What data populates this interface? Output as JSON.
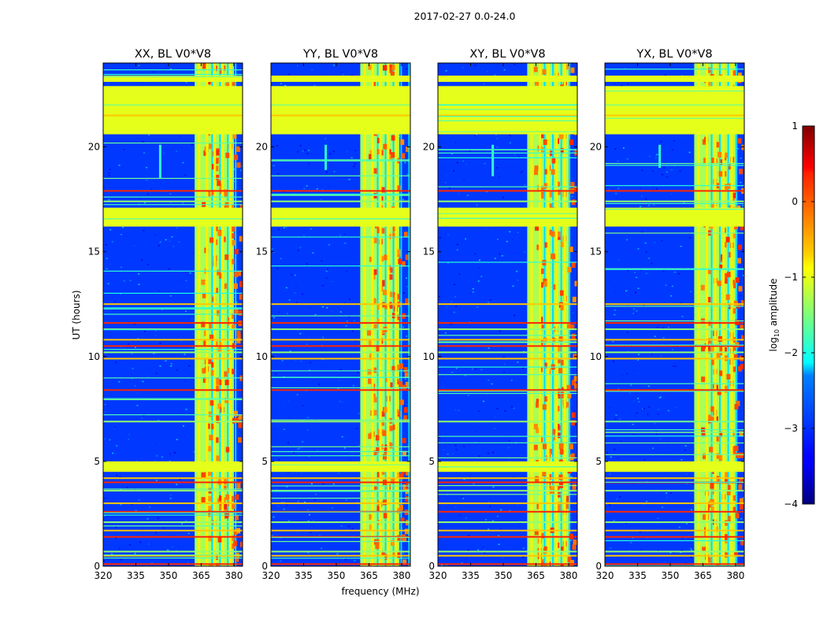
{
  "chart_data": {
    "type": "heatmap",
    "suptitle": "2017-02-27 0.0-24.0",
    "xlabel": "frequency (MHz)",
    "ylabel": "UT (hours)",
    "xlim": [
      320,
      384
    ],
    "ylim": [
      0,
      24
    ],
    "x_ticks": [
      320,
      335,
      350,
      365,
      380
    ],
    "y_ticks": [
      0,
      5,
      10,
      15,
      20
    ],
    "panels": [
      {
        "title": "XX, BL V0*V8",
        "band_start": 362,
        "band_end": 380,
        "ridge_freq": 346,
        "ridge_range": [
          18.5,
          20.1
        ]
      },
      {
        "title": "YY, BL V0*V8",
        "band_start": 361,
        "band_end": 379,
        "ridge_freq": 345,
        "ridge_range": [
          18.9,
          20.1
        ]
      },
      {
        "title": "XY, BL V0*V8",
        "band_start": 361,
        "band_end": 380,
        "ridge_freq": 345,
        "ridge_range": [
          18.6,
          20.1
        ]
      },
      {
        "title": "YX, BL V0*V8",
        "band_start": 361,
        "band_end": 380,
        "ridge_freq": 345,
        "ridge_range": [
          19.0,
          20.1
        ]
      }
    ],
    "flagged_bands_hours": [
      [
        16.2,
        17.1
      ],
      [
        20.6,
        22.9
      ],
      [
        23.1,
        23.4
      ],
      [
        4.5,
        5.0
      ]
    ],
    "rfi_lines_hours": [
      0.1,
      0.5,
      0.7,
      1.4,
      1.7,
      2.1,
      2.6,
      3.0,
      3.6,
      4.0,
      4.2,
      6.9,
      8.4,
      9.9,
      10.2,
      10.5,
      10.8,
      11.3,
      11.6,
      12.5,
      17.4,
      17.9,
      21.5,
      22.0
    ],
    "colorbar": {
      "label": "log10 amplitude",
      "label_main": "log",
      "label_sub": "10",
      "label_rest": " amplitude",
      "min": -4,
      "max": 1,
      "ticks": [
        -4,
        -3,
        -2,
        -1,
        0,
        1
      ],
      "tick_labels": [
        "−4",
        "−3",
        "−2",
        "−1",
        "0",
        "1"
      ],
      "colormap": "jet"
    }
  }
}
